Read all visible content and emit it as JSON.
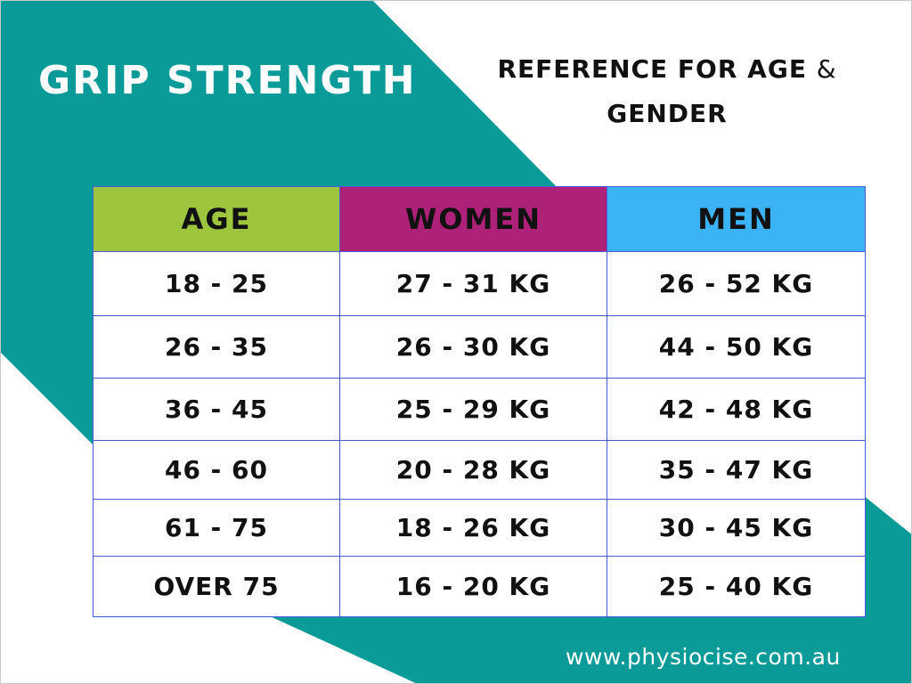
{
  "title": "GRIP STRENGTH",
  "subtitle_line1": "REFERENCE FOR AGE",
  "subtitle_amp": "&",
  "subtitle_line2": "GENDER",
  "colors": {
    "teal": "#0a9b99",
    "age_header": "#9dc53d",
    "women_header": "#ad2278",
    "men_header": "#3bb3f5",
    "grid_border": "#4a5adb"
  },
  "table": {
    "headers": [
      "AGE",
      "WOMEN",
      "MEN"
    ],
    "rows": [
      [
        "18 - 25",
        "27 - 31 KG",
        "26 - 52 KG"
      ],
      [
        "26 - 35",
        "26 - 30 KG",
        "44 - 50 KG"
      ],
      [
        "36 - 45",
        "25 - 29 KG",
        "42 - 48 KG"
      ],
      [
        "46 - 60",
        "20 - 28 KG",
        "35 - 47 KG"
      ],
      [
        "61 - 75",
        "18 - 26 KG",
        "30 - 45 KG"
      ],
      [
        "OVER 75",
        "16 - 20 KG",
        "25 - 40 KG"
      ]
    ]
  },
  "footer": "www.physiocise.com.au"
}
